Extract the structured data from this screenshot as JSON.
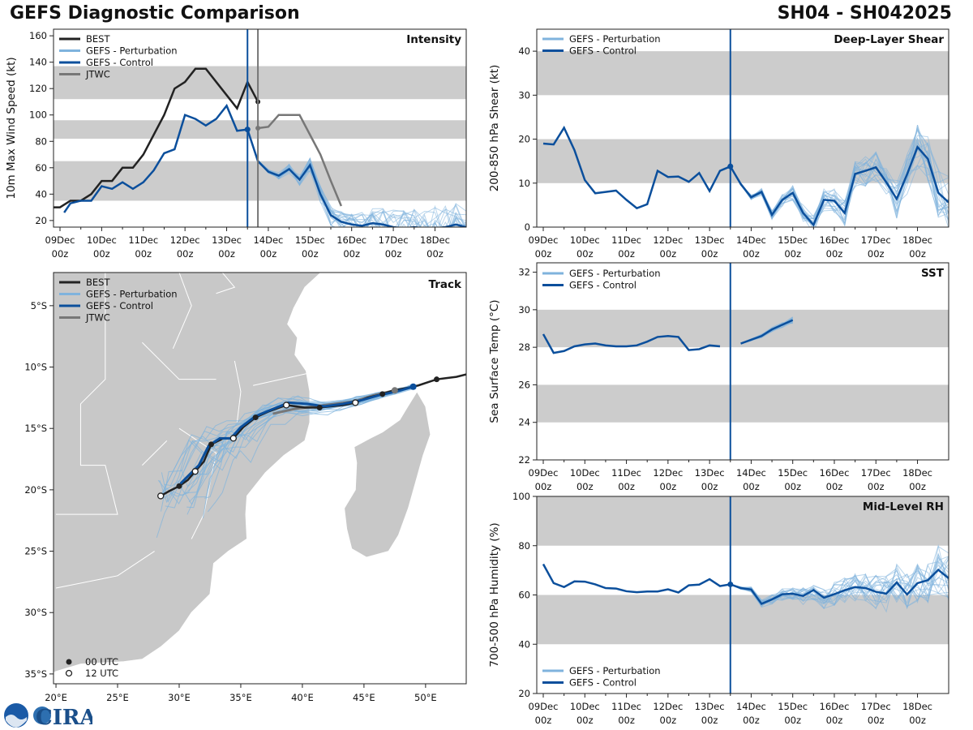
{
  "header": {
    "title_left": "GEFS Diagnostic Comparison",
    "title_right": "SH04 - SH042025"
  },
  "logo_text": "CIRA",
  "colors": {
    "best": "#222222",
    "pert": "#7fb3dd",
    "control": "#0b4f9c",
    "jtwc": "#777777",
    "band": "#cccccc",
    "land": "#c8c8c8"
  },
  "time_axis": {
    "day_labels": [
      "09Dec",
      "10Dec",
      "11Dec",
      "12Dec",
      "13Dec",
      "14Dec",
      "15Dec",
      "16Dec",
      "17Dec",
      "18Dec"
    ],
    "hour_label": "00z"
  },
  "legend": {
    "best": "BEST",
    "pert": "GEFS - Perturbation",
    "control": "GEFS - Control",
    "jtwc": "JTWC",
    "utc00": "00 UTC",
    "utc12": "12 UTC"
  },
  "chart_data": [
    {
      "id": "intensity",
      "type": "line",
      "title": "Intensity",
      "ylabel": "10m Max Wind Speed (kt)",
      "ylim": [
        15,
        165
      ],
      "yticks": [
        20,
        40,
        60,
        80,
        100,
        120,
        140,
        160
      ],
      "xlim_days": [
        0,
        9.75
      ],
      "bands": [
        [
          35,
          65
        ],
        [
          82,
          96
        ],
        [
          112,
          137
        ]
      ],
      "init_day": 4.5,
      "jtwc_init_day": 4.75,
      "series": [
        {
          "name": "BEST",
          "t": [
            -0.25,
            0,
            0.25,
            0.5,
            0.75,
            1,
            1.25,
            1.5,
            1.75,
            2,
            2.25,
            2.5,
            2.75,
            3,
            3.25,
            3.5,
            3.75,
            4,
            4.25,
            4.5,
            4.75
          ],
          "v": [
            30,
            30,
            35,
            35,
            40,
            50,
            50,
            60,
            60,
            70,
            85,
            100,
            120,
            125,
            135,
            135,
            125,
            115,
            105,
            125,
            110
          ]
        },
        {
          "name": "GEFS - Control",
          "t": [
            0.1,
            0.25,
            0.5,
            0.75,
            1,
            1.25,
            1.5,
            1.75,
            2,
            2.25,
            2.5,
            2.75,
            3,
            3.25,
            3.5,
            3.75,
            4,
            4.25,
            4.5,
            4.75,
            5,
            5.25,
            5.5,
            5.75,
            6,
            6.25,
            6.5,
            6.75,
            7,
            7.25,
            7.5,
            7.75,
            8,
            8.25,
            8.5,
            8.75,
            9,
            9.25,
            9.5,
            9.75
          ],
          "v": [
            26,
            33,
            35,
            35,
            46,
            44,
            49,
            44,
            49,
            58,
            71,
            74,
            100,
            97,
            92,
            97,
            107,
            88,
            89,
            65,
            57,
            54,
            59,
            51,
            62,
            40,
            24,
            19,
            17,
            16,
            18,
            17,
            15,
            14,
            15,
            14,
            14,
            15,
            17,
            15
          ]
        },
        {
          "name": "JTWC",
          "t": [
            4.75,
            5,
            5.25,
            5.5,
            5.75,
            6,
            6.25,
            6.5,
            6.75
          ],
          "v": [
            90,
            91,
            100,
            100,
            100,
            85,
            70,
            50,
            31
          ]
        }
      ]
    },
    {
      "id": "shear",
      "type": "line",
      "title": "Deep-Layer Shear",
      "ylabel": "200-850 hPa Shear (kt)",
      "ylim": [
        0,
        45
      ],
      "yticks": [
        0,
        10,
        20,
        30,
        40
      ],
      "xlim_days": [
        0,
        9.75
      ],
      "bands": [
        [
          10,
          20
        ],
        [
          30,
          40
        ]
      ],
      "init_day": 4.5,
      "series": [
        {
          "name": "GEFS - Control",
          "t": [
            0,
            0.25,
            0.5,
            0.75,
            1,
            1.25,
            1.5,
            1.75,
            2,
            2.25,
            2.5,
            2.75,
            3,
            3.25,
            3.5,
            3.75,
            4,
            4.25,
            4.5,
            4.75,
            5,
            5.25,
            5.5,
            5.75,
            6,
            6.25,
            6.5,
            6.75,
            7,
            7.25,
            7.5,
            7.75,
            8,
            8.25,
            8.5,
            8.75,
            9,
            9.25,
            9.5,
            9.75
          ],
          "v": [
            19,
            18.8,
            22.6,
            17.5,
            10.7,
            7.7,
            8,
            8.3,
            6.2,
            4.3,
            5.2,
            12.8,
            11.4,
            11.5,
            10.3,
            12.3,
            8.2,
            12.8,
            13.8,
            9.8,
            6.8,
            8,
            2.8,
            6.2,
            7.8,
            3.2,
            0.5,
            6.2,
            6,
            3.2,
            12.1,
            12.8,
            13.6,
            10.2,
            6.4,
            12,
            18.2,
            15.5,
            7.8,
            5.6
          ]
        }
      ]
    },
    {
      "id": "sst",
      "type": "line",
      "title": "SST",
      "ylabel": "Sea Surface Temp (°C)",
      "ylim": [
        22,
        32.5
      ],
      "yticks": [
        22,
        24,
        26,
        28,
        30,
        32
      ],
      "xlim_days": [
        0,
        9.75
      ],
      "bands": [
        [
          24,
          26
        ],
        [
          28,
          30
        ]
      ],
      "init_day": 4.5,
      "series": [
        {
          "name": "GEFS - Control",
          "t": [
            0,
            0.25,
            0.5,
            0.75,
            1,
            1.25,
            1.5,
            1.75,
            2,
            2.25,
            2.5,
            2.75,
            3,
            3.25,
            3.5,
            3.75,
            4,
            4.25
          ],
          "v": [
            28.7,
            27.7,
            27.8,
            28.05,
            28.15,
            28.2,
            28.1,
            28.05,
            28.05,
            28.1,
            28.3,
            28.55,
            28.6,
            28.55,
            27.85,
            27.9,
            28.1,
            28.05
          ]
        },
        {
          "name": "GEFS - Control (forecast)",
          "t": [
            4.75,
            5,
            5.25,
            5.5,
            5.75,
            6
          ],
          "v": [
            28.2,
            28.4,
            28.6,
            28.95,
            29.2,
            29.45
          ]
        }
      ]
    },
    {
      "id": "rh",
      "type": "line",
      "title": "Mid-Level RH",
      "ylabel": "700-500 hPa Humidity (%)",
      "ylim": [
        20,
        100
      ],
      "yticks": [
        20,
        40,
        60,
        80,
        100
      ],
      "xlim_days": [
        0,
        9.75
      ],
      "bands": [
        [
          40,
          60
        ],
        [
          80,
          100
        ]
      ],
      "init_day": 4.5,
      "series": [
        {
          "name": "GEFS - Control",
          "t": [
            0,
            0.25,
            0.5,
            0.75,
            1,
            1.25,
            1.5,
            1.75,
            2,
            2.25,
            2.5,
            2.75,
            3,
            3.25,
            3.5,
            3.75,
            4,
            4.25,
            4.5,
            4.75,
            5,
            5.25,
            5.5,
            5.75,
            6,
            6.25,
            6.5,
            6.75,
            7,
            7.25,
            7.5,
            7.75,
            8,
            8.25,
            8.5,
            8.75,
            9,
            9.25,
            9.5,
            9.75
          ],
          "v": [
            72.5,
            64.8,
            63.2,
            65.5,
            65.4,
            64.3,
            62.8,
            62.6,
            61.5,
            61.1,
            61.4,
            61.4,
            62.3,
            61,
            63.9,
            64.2,
            66.4,
            63.6,
            64.3,
            62.8,
            62.2,
            56.4,
            58.2,
            60.3,
            60.5,
            59.6,
            62,
            58.9,
            60.3,
            61.9,
            63.2,
            62.8,
            61.3,
            60.5,
            65.1,
            60.2,
            64.8,
            66,
            70.2,
            66.8
          ]
        }
      ]
    },
    {
      "id": "track",
      "type": "scatter",
      "title": "Track",
      "xlim_lon": [
        19.8,
        53.3
      ],
      "ylim_lat": [
        -35.8,
        -2.3
      ],
      "xticks": [
        20,
        25,
        30,
        35,
        40,
        45,
        50
      ],
      "xtick_labels": [
        "20°E",
        "25°E",
        "30°E",
        "35°E",
        "40°E",
        "45°E",
        "50°E"
      ],
      "yticks": [
        -5,
        -10,
        -15,
        -20,
        -25,
        -30,
        -35
      ],
      "ytick_labels": [
        "5°S",
        "10°S",
        "15°S",
        "20°S",
        "25°S",
        "30°S",
        "35°S"
      ],
      "best": {
        "lon": [
          53.3,
          52.5,
          51.7,
          50.9,
          50.3,
          49.4,
          48.5,
          47.4,
          46.5,
          45.3,
          44.3,
          43.3,
          42.3,
          41.4,
          40.2,
          38.7,
          37.3,
          36.2,
          35.2,
          34.4,
          33.6,
          32.6,
          32.0,
          31.3,
          30.7,
          30.0,
          29.2,
          28.5
        ],
        "lat": [
          -10.6,
          -10.8,
          -10.9,
          -11.0,
          -11.2,
          -11.5,
          -11.7,
          -11.9,
          -12.2,
          -12.5,
          -12.9,
          -13.1,
          -13.2,
          -13.3,
          -13.3,
          -13.1,
          -13.6,
          -14.1,
          -14.9,
          -15.8,
          -15.8,
          -16.3,
          -17.7,
          -18.5,
          -19.2,
          -19.7,
          -20.1,
          -20.5
        ]
      },
      "best_00utc": {
        "lon": [
          50.9,
          46.5,
          41.4,
          36.2,
          32.6,
          30.0
        ],
        "lat": [
          -11.0,
          -12.2,
          -13.3,
          -14.1,
          -16.3,
          -19.7
        ]
      },
      "best_12utc": {
        "lon": [
          44.3,
          38.7,
          34.4,
          31.3,
          28.5
        ],
        "lat": [
          -12.9,
          -13.1,
          -15.8,
          -18.5,
          -20.5
        ]
      },
      "control": {
        "lon": [
          49.0,
          47.6,
          46.2,
          44.8,
          43.3,
          41.8,
          40.4,
          38.9,
          37.4,
          36.2,
          35.0,
          34.2,
          33.3,
          32.4,
          31.6,
          30.7,
          30.1
        ],
        "lat": [
          -11.6,
          -12.0,
          -12.3,
          -12.7,
          -13.0,
          -13.2,
          -13.0,
          -12.9,
          -13.5,
          -14.0,
          -14.9,
          -15.8,
          -15.8,
          -16.4,
          -18.0,
          -18.9,
          -19.5
        ]
      },
      "jtwc": {
        "lon": [
          47.5,
          45.8,
          44.2,
          42.6,
          41.0,
          39.4,
          37.6
        ],
        "lat": [
          -11.9,
          -12.3,
          -12.8,
          -13.0,
          -13.2,
          -13.4,
          -13.8
        ]
      }
    }
  ]
}
